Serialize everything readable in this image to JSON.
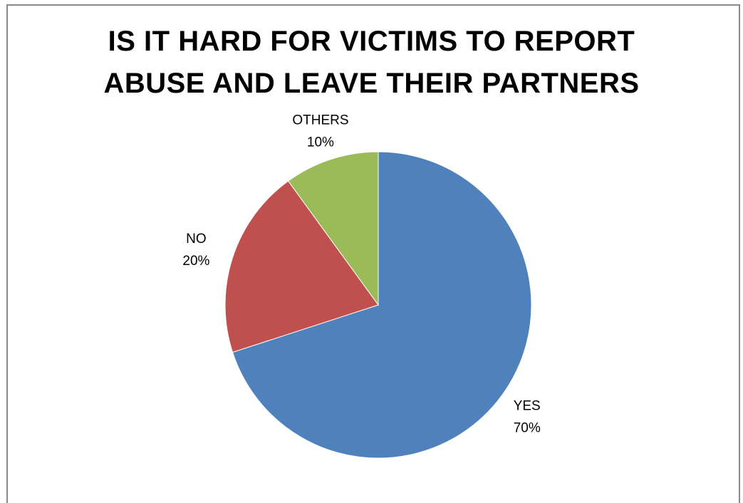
{
  "chart_data": {
    "type": "pie",
    "title_lines": [
      "IS IT HARD FOR VICTIMS TO REPORT",
      "ABUSE AND LEAVE THEIR PARTNERS"
    ],
    "slices": [
      {
        "label": "YES",
        "value": 70,
        "pct_label": "70%",
        "color": "#4F81BD"
      },
      {
        "label": "NO",
        "value": 20,
        "pct_label": "20%",
        "color": "#C0504D"
      },
      {
        "label": "OTHERS",
        "value": 10,
        "pct_label": "10%",
        "color": "#9BBB59"
      }
    ],
    "legend": "none",
    "start_angle_deg": 0,
    "direction": "clockwise"
  }
}
